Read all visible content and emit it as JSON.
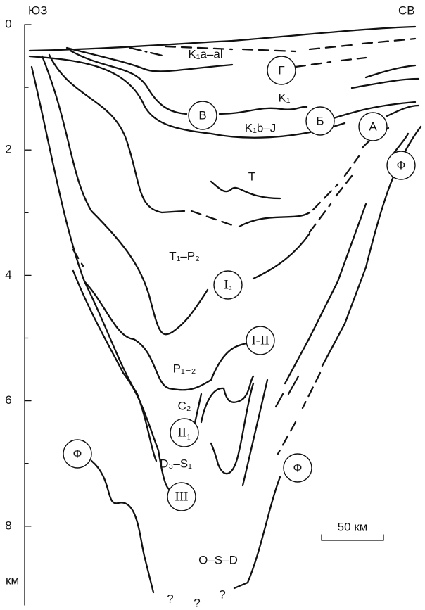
{
  "header": {
    "left": "ЮЗ",
    "right": "СВ"
  },
  "depth_axis": {
    "ticks": [
      0,
      2,
      4,
      6,
      8
    ],
    "unit": "км"
  },
  "labels": [
    "K₁a–al",
    "K₁",
    "K₁b–J",
    "T",
    "T₁–P₂",
    "P₁₋₂",
    "C₂",
    "D₃–S₁",
    "O–S–D"
  ],
  "circled": [
    "Г",
    "В",
    "Б",
    "А",
    "Ф",
    "Iₐ",
    "I-II",
    "II₁",
    "Ф",
    "III",
    "Ф"
  ],
  "question_marks": [
    "?",
    "?",
    "?"
  ],
  "scale_bar": {
    "label": "50 км"
  }
}
